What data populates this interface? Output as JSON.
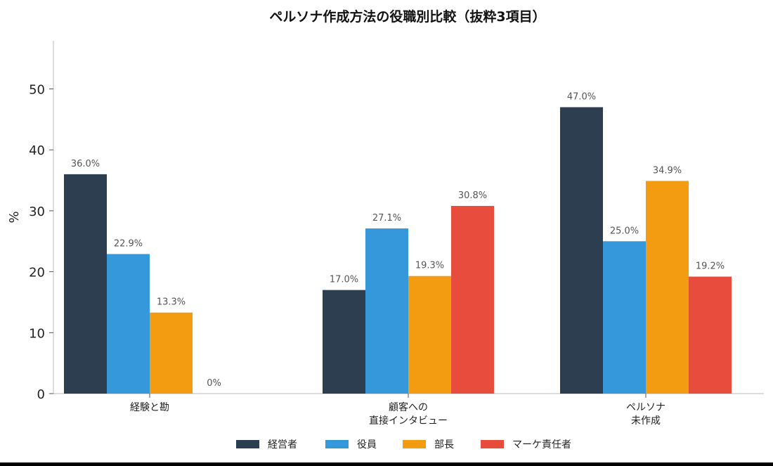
{
  "chart_data": {
    "type": "bar",
    "title": "ペルソナ作成方法の役職別比較（抜粋3項目）",
    "xlabel": "",
    "ylabel": "%",
    "ylim": [
      0,
      58
    ],
    "yticks": [
      "0",
      "10",
      "20",
      "30",
      "40",
      "50"
    ],
    "categories": [
      [
        "経験と勘"
      ],
      [
        "顧客への",
        "直接インタビュー"
      ],
      [
        "ペルソナ",
        "未作成"
      ]
    ],
    "series": [
      {
        "name": "経営者",
        "color": "#2c3e50",
        "values": [
          36.0,
          17.0,
          47.0
        ],
        "labels": [
          "36.0%",
          "17.0%",
          "47.0%"
        ]
      },
      {
        "name": "役員",
        "color": "#3498db",
        "values": [
          22.9,
          27.1,
          25.0
        ],
        "labels": [
          "22.9%",
          "27.1%",
          "25.0%"
        ]
      },
      {
        "name": "部長",
        "color": "#f39c12",
        "values": [
          13.3,
          19.3,
          34.9
        ],
        "labels": [
          "13.3%",
          "19.3%",
          "34.9%"
        ]
      },
      {
        "name": "マーケ責任者",
        "color": "#e74c3c",
        "values": [
          0,
          30.8,
          19.2
        ],
        "labels": [
          "0%",
          "30.8%",
          "19.2%"
        ]
      }
    ],
    "grid": false,
    "legend": "bottom"
  }
}
